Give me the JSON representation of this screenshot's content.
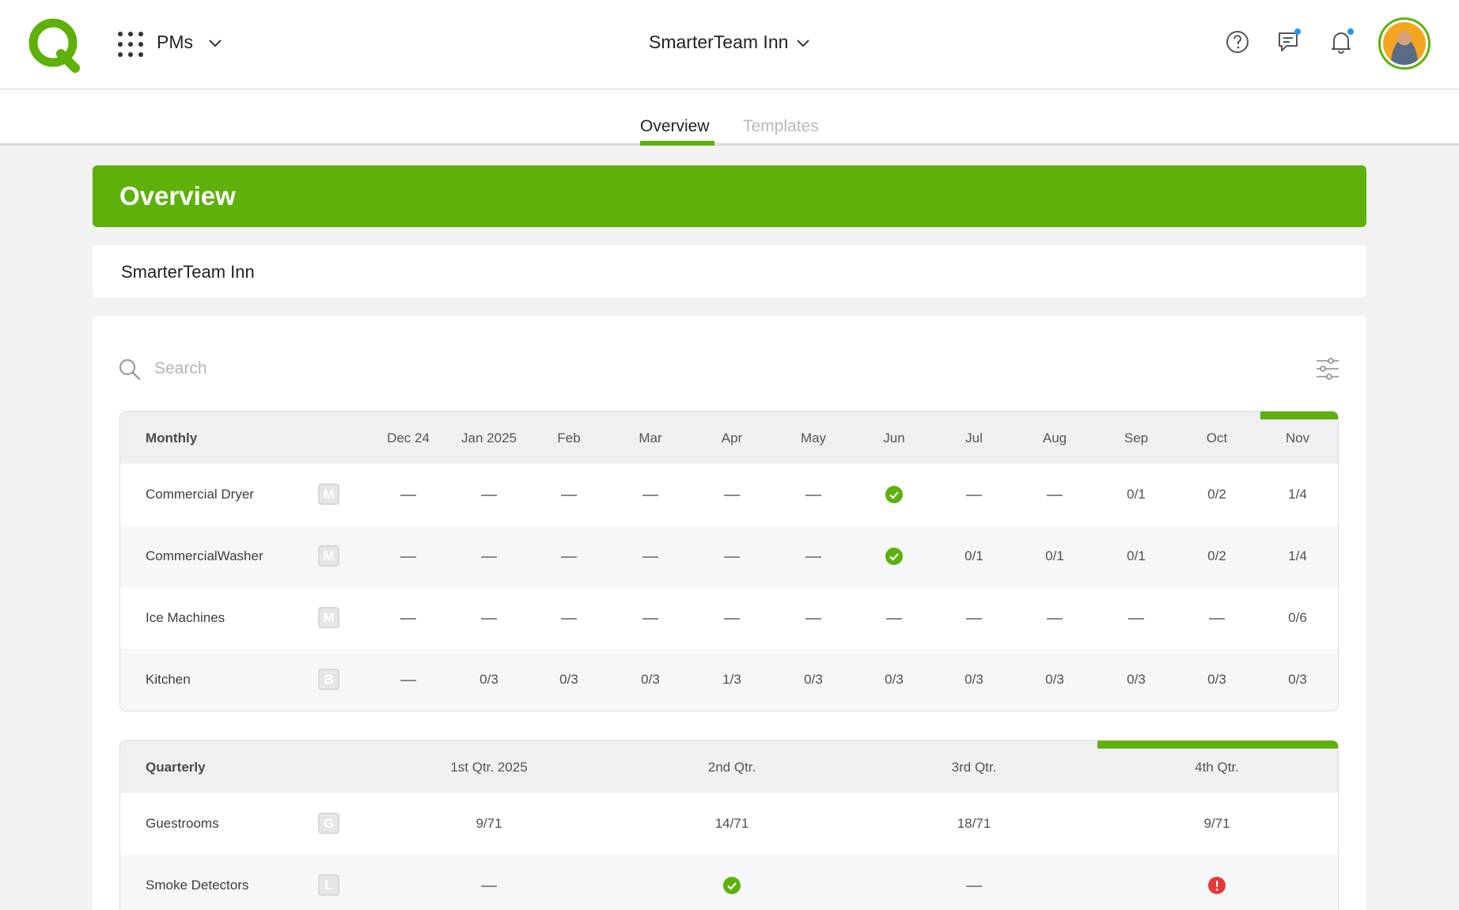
{
  "header": {
    "module_name": "PMs",
    "property_name": "SmarterTeam Inn",
    "icons": [
      "logo-icon",
      "apps-grid-icon",
      "help-icon",
      "chat-icon",
      "bell-icon"
    ],
    "brand_color": "#5db10a",
    "notification_dot_color": "#2196f3"
  },
  "tabs": [
    {
      "label": "Overview",
      "active": true
    },
    {
      "label": "Templates",
      "active": false
    }
  ],
  "banner": {
    "title": "Overview"
  },
  "property_card": {
    "title": "SmarterTeam Inn"
  },
  "search": {
    "placeholder": "Search",
    "value": ""
  },
  "monthly": {
    "title": "Monthly",
    "columns": [
      "Dec 24",
      "Jan 2025",
      "Feb",
      "Mar",
      "Apr",
      "May",
      "Jun",
      "Jul",
      "Aug",
      "Sep",
      "Oct",
      "Nov"
    ],
    "current_column": "Nov",
    "rows": [
      {
        "name": "Commercial Dryer",
        "badge": "M",
        "cells": [
          "—",
          "—",
          "—",
          "—",
          "—",
          "—",
          "ok",
          "—",
          "—",
          "0/1",
          "0/2",
          "1/4"
        ]
      },
      {
        "name": "CommercialWasher",
        "badge": "M",
        "cells": [
          "—",
          "—",
          "—",
          "—",
          "—",
          "—",
          "ok",
          "0/1",
          "0/1",
          "0/1",
          "0/2",
          "1/4"
        ]
      },
      {
        "name": "Ice Machines",
        "badge": "M",
        "cells": [
          "—",
          "—",
          "—",
          "—",
          "—",
          "—",
          "—",
          "—",
          "—",
          "—",
          "—",
          "0/6"
        ]
      },
      {
        "name": "Kitchen",
        "badge": "B",
        "cells": [
          "—",
          "0/3",
          "0/3",
          "0/3",
          "1/3",
          "0/3",
          "0/3",
          "0/3",
          "0/3",
          "0/3",
          "0/3",
          "0/3"
        ]
      }
    ]
  },
  "quarterly": {
    "title": "Quarterly",
    "columns": [
      "1st Qtr. 2025",
      "2nd Qtr.",
      "3rd Qtr.",
      "4th Qtr."
    ],
    "current_column": "4th Qtr.",
    "rows": [
      {
        "name": "Guestrooms",
        "badge": "G",
        "cells": [
          "9/71",
          "14/71",
          "18/71",
          "9/71"
        ]
      },
      {
        "name": "Smoke Detectors",
        "badge": "L",
        "cells": [
          "—",
          "ok",
          "—",
          "alert"
        ]
      }
    ]
  },
  "status_colors": {
    "ok": "#5db10a",
    "alert": "#e53935"
  }
}
